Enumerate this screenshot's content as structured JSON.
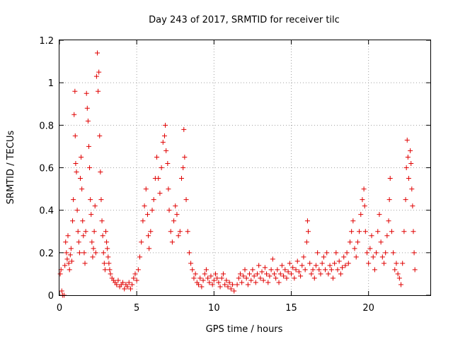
{
  "chart_data": {
    "type": "scatter",
    "title": "Day 243 of 2017, SRMTID for receiver tilc",
    "xlabel": "GPS time / hours",
    "ylabel": "SRMTID / TECUs",
    "xlim": [
      0,
      24
    ],
    "ylim": [
      0,
      1.2
    ],
    "x_ticks": [
      0,
      5,
      10,
      15,
      20
    ],
    "x_tick_labels": [
      "0",
      "5",
      "10",
      "15",
      "20"
    ],
    "y_ticks": [
      0,
      0.2,
      0.4,
      0.6,
      0.8,
      1.0,
      1.2
    ],
    "y_tick_labels": [
      "0",
      "0.2",
      "0.4",
      "0.6",
      "0.8",
      "1",
      "1.2"
    ],
    "grid": true,
    "marker": "plus",
    "color": "#e00000",
    "series": [
      {
        "name": "SRMTID",
        "points": [
          [
            0.05,
            0.1
          ],
          [
            0.1,
            0.12
          ],
          [
            0.15,
            0.02
          ],
          [
            0.2,
            0.0
          ],
          [
            0.3,
            0.0
          ],
          [
            0.35,
            0.14
          ],
          [
            0.4,
            0.25
          ],
          [
            0.45,
            0.2
          ],
          [
            0.5,
            0.17
          ],
          [
            0.55,
            0.28
          ],
          [
            0.6,
            0.15
          ],
          [
            0.65,
            0.12
          ],
          [
            0.7,
            0.19
          ],
          [
            0.75,
            0.22
          ],
          [
            0.8,
            0.16
          ],
          [
            0.85,
            0.35
          ],
          [
            0.9,
            0.45
          ],
          [
            0.95,
            0.85
          ],
          [
            1.0,
            0.96
          ],
          [
            1.02,
            0.75
          ],
          [
            1.05,
            0.62
          ],
          [
            1.1,
            0.58
          ],
          [
            1.15,
            0.4
          ],
          [
            1.2,
            0.3
          ],
          [
            1.25,
            0.25
          ],
          [
            1.3,
            0.2
          ],
          [
            1.35,
            0.55
          ],
          [
            1.4,
            0.65
          ],
          [
            1.45,
            0.5
          ],
          [
            1.5,
            0.35
          ],
          [
            1.55,
            0.28
          ],
          [
            1.6,
            0.2
          ],
          [
            1.65,
            0.15
          ],
          [
            1.7,
            0.3
          ],
          [
            1.75,
            0.95
          ],
          [
            1.8,
            0.88
          ],
          [
            1.85,
            0.82
          ],
          [
            1.9,
            0.7
          ],
          [
            1.95,
            0.6
          ],
          [
            2.0,
            0.45
          ],
          [
            2.05,
            0.38
          ],
          [
            2.1,
            0.25
          ],
          [
            2.15,
            0.18
          ],
          [
            2.2,
            0.22
          ],
          [
            2.25,
            0.3
          ],
          [
            2.3,
            0.42
          ],
          [
            2.35,
            0.2
          ],
          [
            2.4,
            1.03
          ],
          [
            2.45,
            1.14
          ],
          [
            2.5,
            0.96
          ],
          [
            2.55,
            1.05
          ],
          [
            2.6,
            0.75
          ],
          [
            2.65,
            0.58
          ],
          [
            2.7,
            0.45
          ],
          [
            2.75,
            0.35
          ],
          [
            2.8,
            0.28
          ],
          [
            2.85,
            0.2
          ],
          [
            2.9,
            0.15
          ],
          [
            2.95,
            0.12
          ],
          [
            3.0,
            0.3
          ],
          [
            3.05,
            0.25
          ],
          [
            3.1,
            0.22
          ],
          [
            3.15,
            0.18
          ],
          [
            3.2,
            0.15
          ],
          [
            3.25,
            0.12
          ],
          [
            3.3,
            0.1
          ],
          [
            3.4,
            0.08
          ],
          [
            3.5,
            0.07
          ],
          [
            3.6,
            0.06
          ],
          [
            3.7,
            0.05
          ],
          [
            3.8,
            0.07
          ],
          [
            3.9,
            0.04
          ],
          [
            4.0,
            0.05
          ],
          [
            4.1,
            0.06
          ],
          [
            4.2,
            0.03
          ],
          [
            4.3,
            0.05
          ],
          [
            4.4,
            0.04
          ],
          [
            4.5,
            0.06
          ],
          [
            4.6,
            0.03
          ],
          [
            4.7,
            0.05
          ],
          [
            4.8,
            0.08
          ],
          [
            4.9,
            0.1
          ],
          [
            5.0,
            0.07
          ],
          [
            5.1,
            0.12
          ],
          [
            5.2,
            0.18
          ],
          [
            5.3,
            0.25
          ],
          [
            5.4,
            0.35
          ],
          [
            5.5,
            0.42
          ],
          [
            5.6,
            0.5
          ],
          [
            5.7,
            0.38
          ],
          [
            5.75,
            0.28
          ],
          [
            5.8,
            0.22
          ],
          [
            5.9,
            0.3
          ],
          [
            6.0,
            0.4
          ],
          [
            6.1,
            0.45
          ],
          [
            6.2,
            0.55
          ],
          [
            6.3,
            0.65
          ],
          [
            6.4,
            0.55
          ],
          [
            6.5,
            0.48
          ],
          [
            6.6,
            0.6
          ],
          [
            6.7,
            0.72
          ],
          [
            6.8,
            0.75
          ],
          [
            6.85,
            0.8
          ],
          [
            6.9,
            0.68
          ],
          [
            7.0,
            0.62
          ],
          [
            7.05,
            0.5
          ],
          [
            7.1,
            0.4
          ],
          [
            7.2,
            0.3
          ],
          [
            7.3,
            0.25
          ],
          [
            7.4,
            0.35
          ],
          [
            7.5,
            0.42
          ],
          [
            7.6,
            0.38
          ],
          [
            7.7,
            0.28
          ],
          [
            7.8,
            0.3
          ],
          [
            7.9,
            0.55
          ],
          [
            8.0,
            0.6
          ],
          [
            8.05,
            0.78
          ],
          [
            8.1,
            0.65
          ],
          [
            8.2,
            0.45
          ],
          [
            8.3,
            0.3
          ],
          [
            8.4,
            0.2
          ],
          [
            8.5,
            0.15
          ],
          [
            8.6,
            0.12
          ],
          [
            8.7,
            0.08
          ],
          [
            8.8,
            0.1
          ],
          [
            8.9,
            0.06
          ],
          [
            9.0,
            0.05
          ],
          [
            9.1,
            0.08
          ],
          [
            9.2,
            0.04
          ],
          [
            9.3,
            0.07
          ],
          [
            9.4,
            0.1
          ],
          [
            9.5,
            0.12
          ],
          [
            9.6,
            0.08
          ],
          [
            9.7,
            0.06
          ],
          [
            9.8,
            0.09
          ],
          [
            9.9,
            0.05
          ],
          [
            10.0,
            0.07
          ],
          [
            10.1,
            0.1
          ],
          [
            10.2,
            0.08
          ],
          [
            10.3,
            0.06
          ],
          [
            10.4,
            0.04
          ],
          [
            10.5,
            0.08
          ],
          [
            10.6,
            0.1
          ],
          [
            10.7,
            0.05
          ],
          [
            10.8,
            0.07
          ],
          [
            10.9,
            0.04
          ],
          [
            11.0,
            0.06
          ],
          [
            11.1,
            0.03
          ],
          [
            11.2,
            0.05
          ],
          [
            11.3,
            0.02
          ],
          [
            11.5,
            0.05
          ],
          [
            11.6,
            0.08
          ],
          [
            11.7,
            0.1
          ],
          [
            11.8,
            0.06
          ],
          [
            11.9,
            0.09
          ],
          [
            12.0,
            0.12
          ],
          [
            12.1,
            0.08
          ],
          [
            12.2,
            0.05
          ],
          [
            12.3,
            0.1
          ],
          [
            12.4,
            0.07
          ],
          [
            12.5,
            0.12
          ],
          [
            12.6,
            0.09
          ],
          [
            12.7,
            0.06
          ],
          [
            12.8,
            0.1
          ],
          [
            12.9,
            0.14
          ],
          [
            13.0,
            0.08
          ],
          [
            13.1,
            0.11
          ],
          [
            13.2,
            0.07
          ],
          [
            13.3,
            0.13
          ],
          [
            13.4,
            0.1
          ],
          [
            13.5,
            0.06
          ],
          [
            13.6,
            0.09
          ],
          [
            13.7,
            0.12
          ],
          [
            13.8,
            0.17
          ],
          [
            13.9,
            0.1
          ],
          [
            14.0,
            0.08
          ],
          [
            14.1,
            0.12
          ],
          [
            14.2,
            0.06
          ],
          [
            14.3,
            0.1
          ],
          [
            14.4,
            0.14
          ],
          [
            14.5,
            0.09
          ],
          [
            14.6,
            0.12
          ],
          [
            14.7,
            0.08
          ],
          [
            14.8,
            0.11
          ],
          [
            14.9,
            0.15
          ],
          [
            15.0,
            0.1
          ],
          [
            15.1,
            0.13
          ],
          [
            15.2,
            0.08
          ],
          [
            15.3,
            0.12
          ],
          [
            15.4,
            0.16
          ],
          [
            15.5,
            0.11
          ],
          [
            15.6,
            0.09
          ],
          [
            15.7,
            0.14
          ],
          [
            15.8,
            0.18
          ],
          [
            15.9,
            0.12
          ],
          [
            16.0,
            0.25
          ],
          [
            16.05,
            0.35
          ],
          [
            16.1,
            0.3
          ],
          [
            16.2,
            0.15
          ],
          [
            16.3,
            0.1
          ],
          [
            16.4,
            0.12
          ],
          [
            16.5,
            0.08
          ],
          [
            16.6,
            0.14
          ],
          [
            16.7,
            0.2
          ],
          [
            16.8,
            0.12
          ],
          [
            16.9,
            0.1
          ],
          [
            17.0,
            0.15
          ],
          [
            17.1,
            0.18
          ],
          [
            17.2,
            0.12
          ],
          [
            17.3,
            0.2
          ],
          [
            17.4,
            0.1
          ],
          [
            17.5,
            0.14
          ],
          [
            17.6,
            0.12
          ],
          [
            17.7,
            0.08
          ],
          [
            17.8,
            0.15
          ],
          [
            17.9,
            0.2
          ],
          [
            18.0,
            0.12
          ],
          [
            18.1,
            0.16
          ],
          [
            18.2,
            0.1
          ],
          [
            18.3,
            0.13
          ],
          [
            18.4,
            0.18
          ],
          [
            18.5,
            0.14
          ],
          [
            18.6,
            0.2
          ],
          [
            18.7,
            0.15
          ],
          [
            18.8,
            0.25
          ],
          [
            18.9,
            0.3
          ],
          [
            19.0,
            0.35
          ],
          [
            19.1,
            0.22
          ],
          [
            19.2,
            0.18
          ],
          [
            19.3,
            0.25
          ],
          [
            19.4,
            0.3
          ],
          [
            19.5,
            0.38
          ],
          [
            19.6,
            0.45
          ],
          [
            19.7,
            0.5
          ],
          [
            19.75,
            0.42
          ],
          [
            19.8,
            0.3
          ],
          [
            19.9,
            0.2
          ],
          [
            20.0,
            0.15
          ],
          [
            20.1,
            0.22
          ],
          [
            20.2,
            0.28
          ],
          [
            20.3,
            0.18
          ],
          [
            20.4,
            0.12
          ],
          [
            20.5,
            0.2
          ],
          [
            20.6,
            0.3
          ],
          [
            20.7,
            0.38
          ],
          [
            20.8,
            0.25
          ],
          [
            20.9,
            0.18
          ],
          [
            21.0,
            0.15
          ],
          [
            21.1,
            0.2
          ],
          [
            21.2,
            0.28
          ],
          [
            21.3,
            0.35
          ],
          [
            21.35,
            0.45
          ],
          [
            21.4,
            0.55
          ],
          [
            21.5,
            0.3
          ],
          [
            21.6,
            0.2
          ],
          [
            21.7,
            0.12
          ],
          [
            21.8,
            0.15
          ],
          [
            21.9,
            0.1
          ],
          [
            22.0,
            0.08
          ],
          [
            22.1,
            0.05
          ],
          [
            22.2,
            0.15
          ],
          [
            22.3,
            0.3
          ],
          [
            22.4,
            0.45
          ],
          [
            22.45,
            0.6
          ],
          [
            22.5,
            0.73
          ],
          [
            22.55,
            0.65
          ],
          [
            22.6,
            0.55
          ],
          [
            22.7,
            0.68
          ],
          [
            22.75,
            0.62
          ],
          [
            22.8,
            0.5
          ],
          [
            22.85,
            0.42
          ],
          [
            22.9,
            0.3
          ],
          [
            22.95,
            0.2
          ],
          [
            23.0,
            0.12
          ]
        ]
      }
    ]
  }
}
